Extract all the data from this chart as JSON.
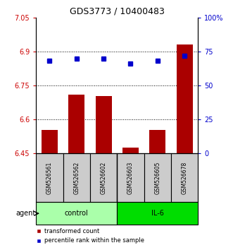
{
  "title": "GDS3773 / 10400483",
  "samples": [
    "GSM526561",
    "GSM526562",
    "GSM526602",
    "GSM526603",
    "GSM526605",
    "GSM526678"
  ],
  "bar_values": [
    6.555,
    6.71,
    6.705,
    6.475,
    6.555,
    6.93
  ],
  "percentile_values": [
    68,
    70,
    70,
    66,
    68,
    72
  ],
  "ylim_left": [
    6.45,
    7.05
  ],
  "ylim_right": [
    0,
    100
  ],
  "yticks_left": [
    6.45,
    6.6,
    6.75,
    6.9,
    7.05
  ],
  "yticks_right": [
    0,
    25,
    50,
    75,
    100
  ],
  "ytick_labels_left": [
    "6.45",
    "6.6",
    "6.75",
    "6.9",
    "7.05"
  ],
  "ytick_labels_right": [
    "0",
    "25",
    "50",
    "75",
    "100%"
  ],
  "bar_color": "#aa0000",
  "dot_color": "#0000cc",
  "bar_bottom": 6.45,
  "agent_label": "agent",
  "legend": [
    {
      "color": "#aa0000",
      "label": "transformed count"
    },
    {
      "color": "#0000cc",
      "label": "percentile rank within the sample"
    }
  ],
  "grid_yticks": [
    6.6,
    6.75,
    6.9
  ],
  "background_color": "#ffffff",
  "bar_width": 0.6,
  "control_color": "#aaffaa",
  "il6_color": "#00dd00"
}
